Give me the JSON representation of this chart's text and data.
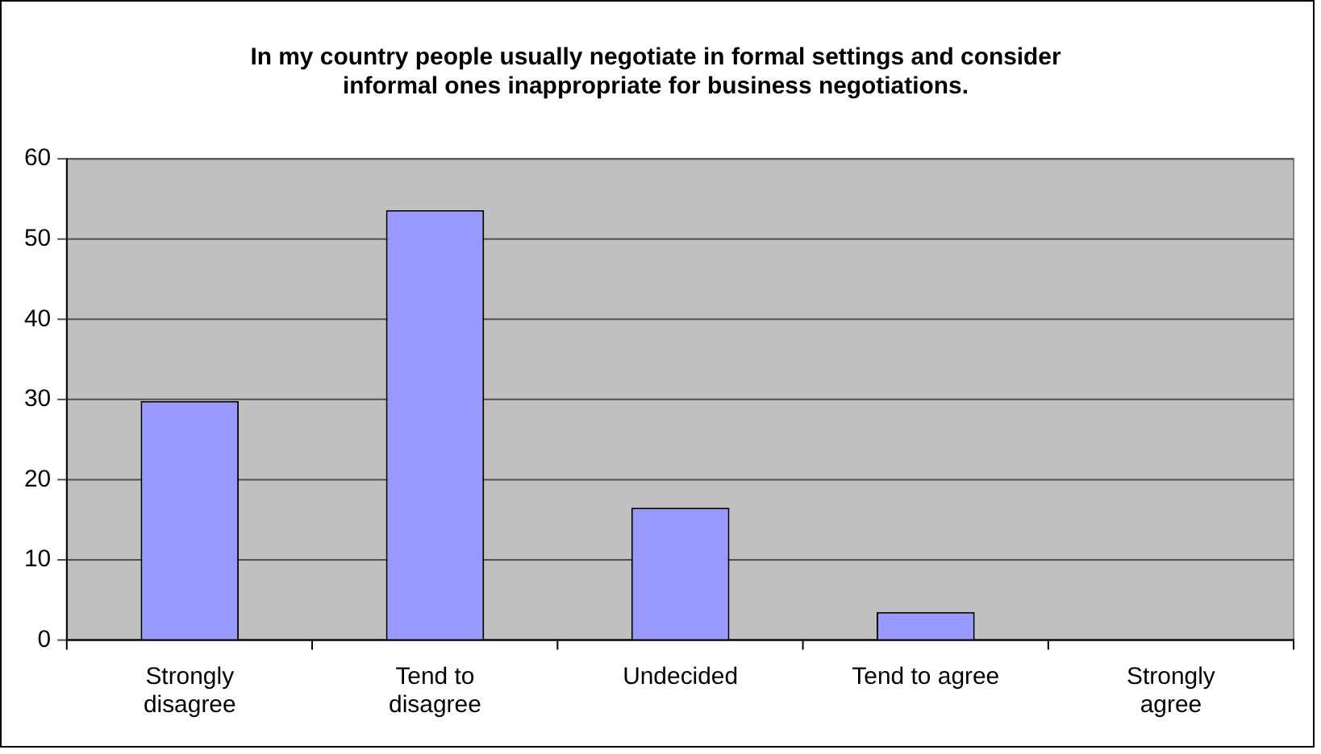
{
  "chart_data": {
    "type": "bar",
    "title": "In my country people usually negotiate in formal settings and consider informal ones inappropriate for business negotiations.",
    "categories": [
      "Strongly disagree",
      "Tend to disagree",
      "Undecided",
      "Tend to agree",
      "Strongly agree"
    ],
    "values": [
      29.8,
      53.6,
      16.5,
      3.5,
      0
    ],
    "color": "#9999ff",
    "ylim": [
      0,
      60
    ],
    "yticks": [
      0,
      10,
      20,
      30,
      40,
      50,
      60
    ],
    "grid": "y",
    "legend": false
  }
}
